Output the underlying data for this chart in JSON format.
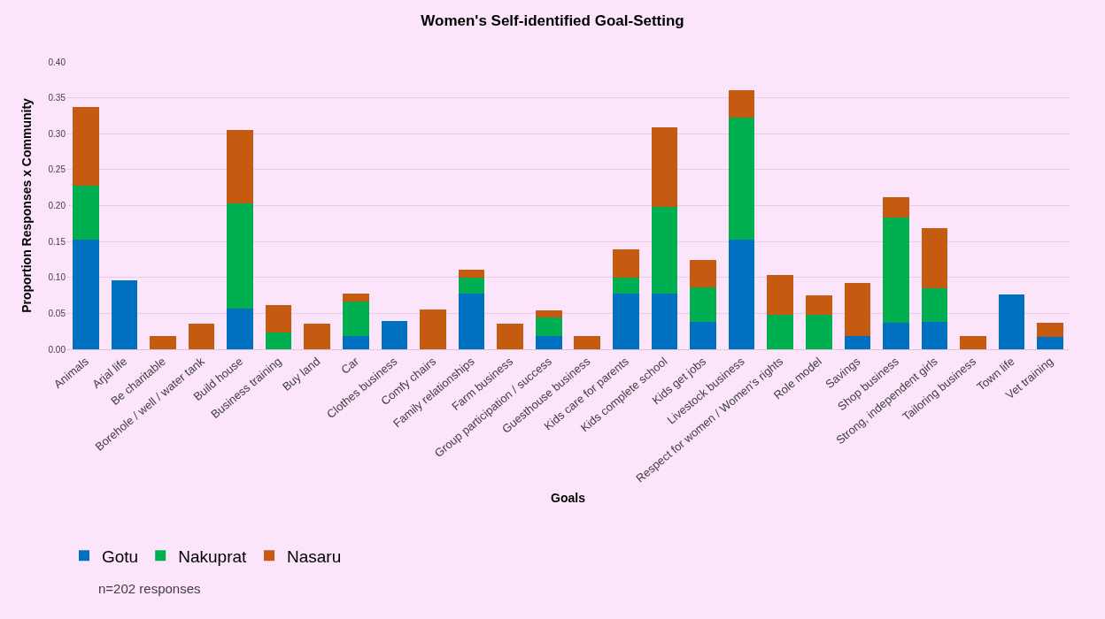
{
  "chart_data": {
    "type": "bar",
    "stacked": true,
    "title": "Women's Self-identified Goal-Setting",
    "xlabel": "Goals",
    "ylabel": "Proportion Responses x Community",
    "categories": [
      "Animals",
      "Arjal life",
      "Be charitable",
      "Borehole / well / water tank",
      "Build house",
      "Business training",
      "Buy land",
      "Car",
      "Clothes business",
      "Comfy chairs",
      "Family relationships",
      "Farm business",
      "Group participation / success",
      "Guesthouse business",
      "Kids care for parents",
      "Kids complete school",
      "Kids get jobs",
      "Livestock business",
      "Respect for women / Women's rights",
      "Role model",
      "Savings",
      "Shop business",
      "Strong, independent girls",
      "Tailoring business",
      "Town life",
      "Vet training"
    ],
    "series": [
      {
        "name": "Gotu",
        "color": "#0070c0",
        "values": [
          0.153,
          0.096,
          null,
          null,
          0.057,
          null,
          null,
          0.018,
          0.039,
          null,
          0.077,
          null,
          0.018,
          null,
          0.077,
          0.077,
          0.038,
          0.153,
          null,
          null,
          0.018,
          0.037,
          0.038,
          null,
          0.076,
          0.017
        ]
      },
      {
        "name": "Nakuprat",
        "color": "#00b050",
        "values": [
          0.075,
          null,
          null,
          null,
          0.146,
          0.024,
          null,
          0.049,
          null,
          null,
          0.023,
          null,
          0.026,
          null,
          0.023,
          0.121,
          0.048,
          0.17,
          0.048,
          0.048,
          null,
          0.146,
          0.047,
          null,
          null,
          null
        ]
      },
      {
        "name": "Nasaru",
        "color": "#c55a11",
        "values": [
          0.109,
          null,
          0.018,
          0.036,
          0.102,
          0.038,
          0.036,
          0.011,
          null,
          0.055,
          0.011,
          0.036,
          0.01,
          0.018,
          0.039,
          0.111,
          0.038,
          0.038,
          0.055,
          0.027,
          0.074,
          0.029,
          0.084,
          0.018,
          null,
          0.02
        ]
      }
    ],
    "ylim": [
      0,
      0.4
    ],
    "yticks": [
      {
        "value": 0,
        "label": "0.00"
      },
      {
        "value": 0.05,
        "label": "0.05"
      },
      {
        "value": 0.1,
        "label": "0.10"
      },
      {
        "value": 0.15,
        "label": "0.15"
      },
      {
        "value": 0.2,
        "label": "0.20"
      },
      {
        "value": 0.25,
        "label": "0.25"
      },
      {
        "value": 0.3,
        "label": "0.30"
      },
      {
        "value": 0.35,
        "label": "0.35"
      },
      {
        "value": 0.4,
        "label": "0.40"
      }
    ],
    "grid": "y",
    "legend": "bottom left",
    "annotations": [
      "n=202 responses"
    ]
  }
}
